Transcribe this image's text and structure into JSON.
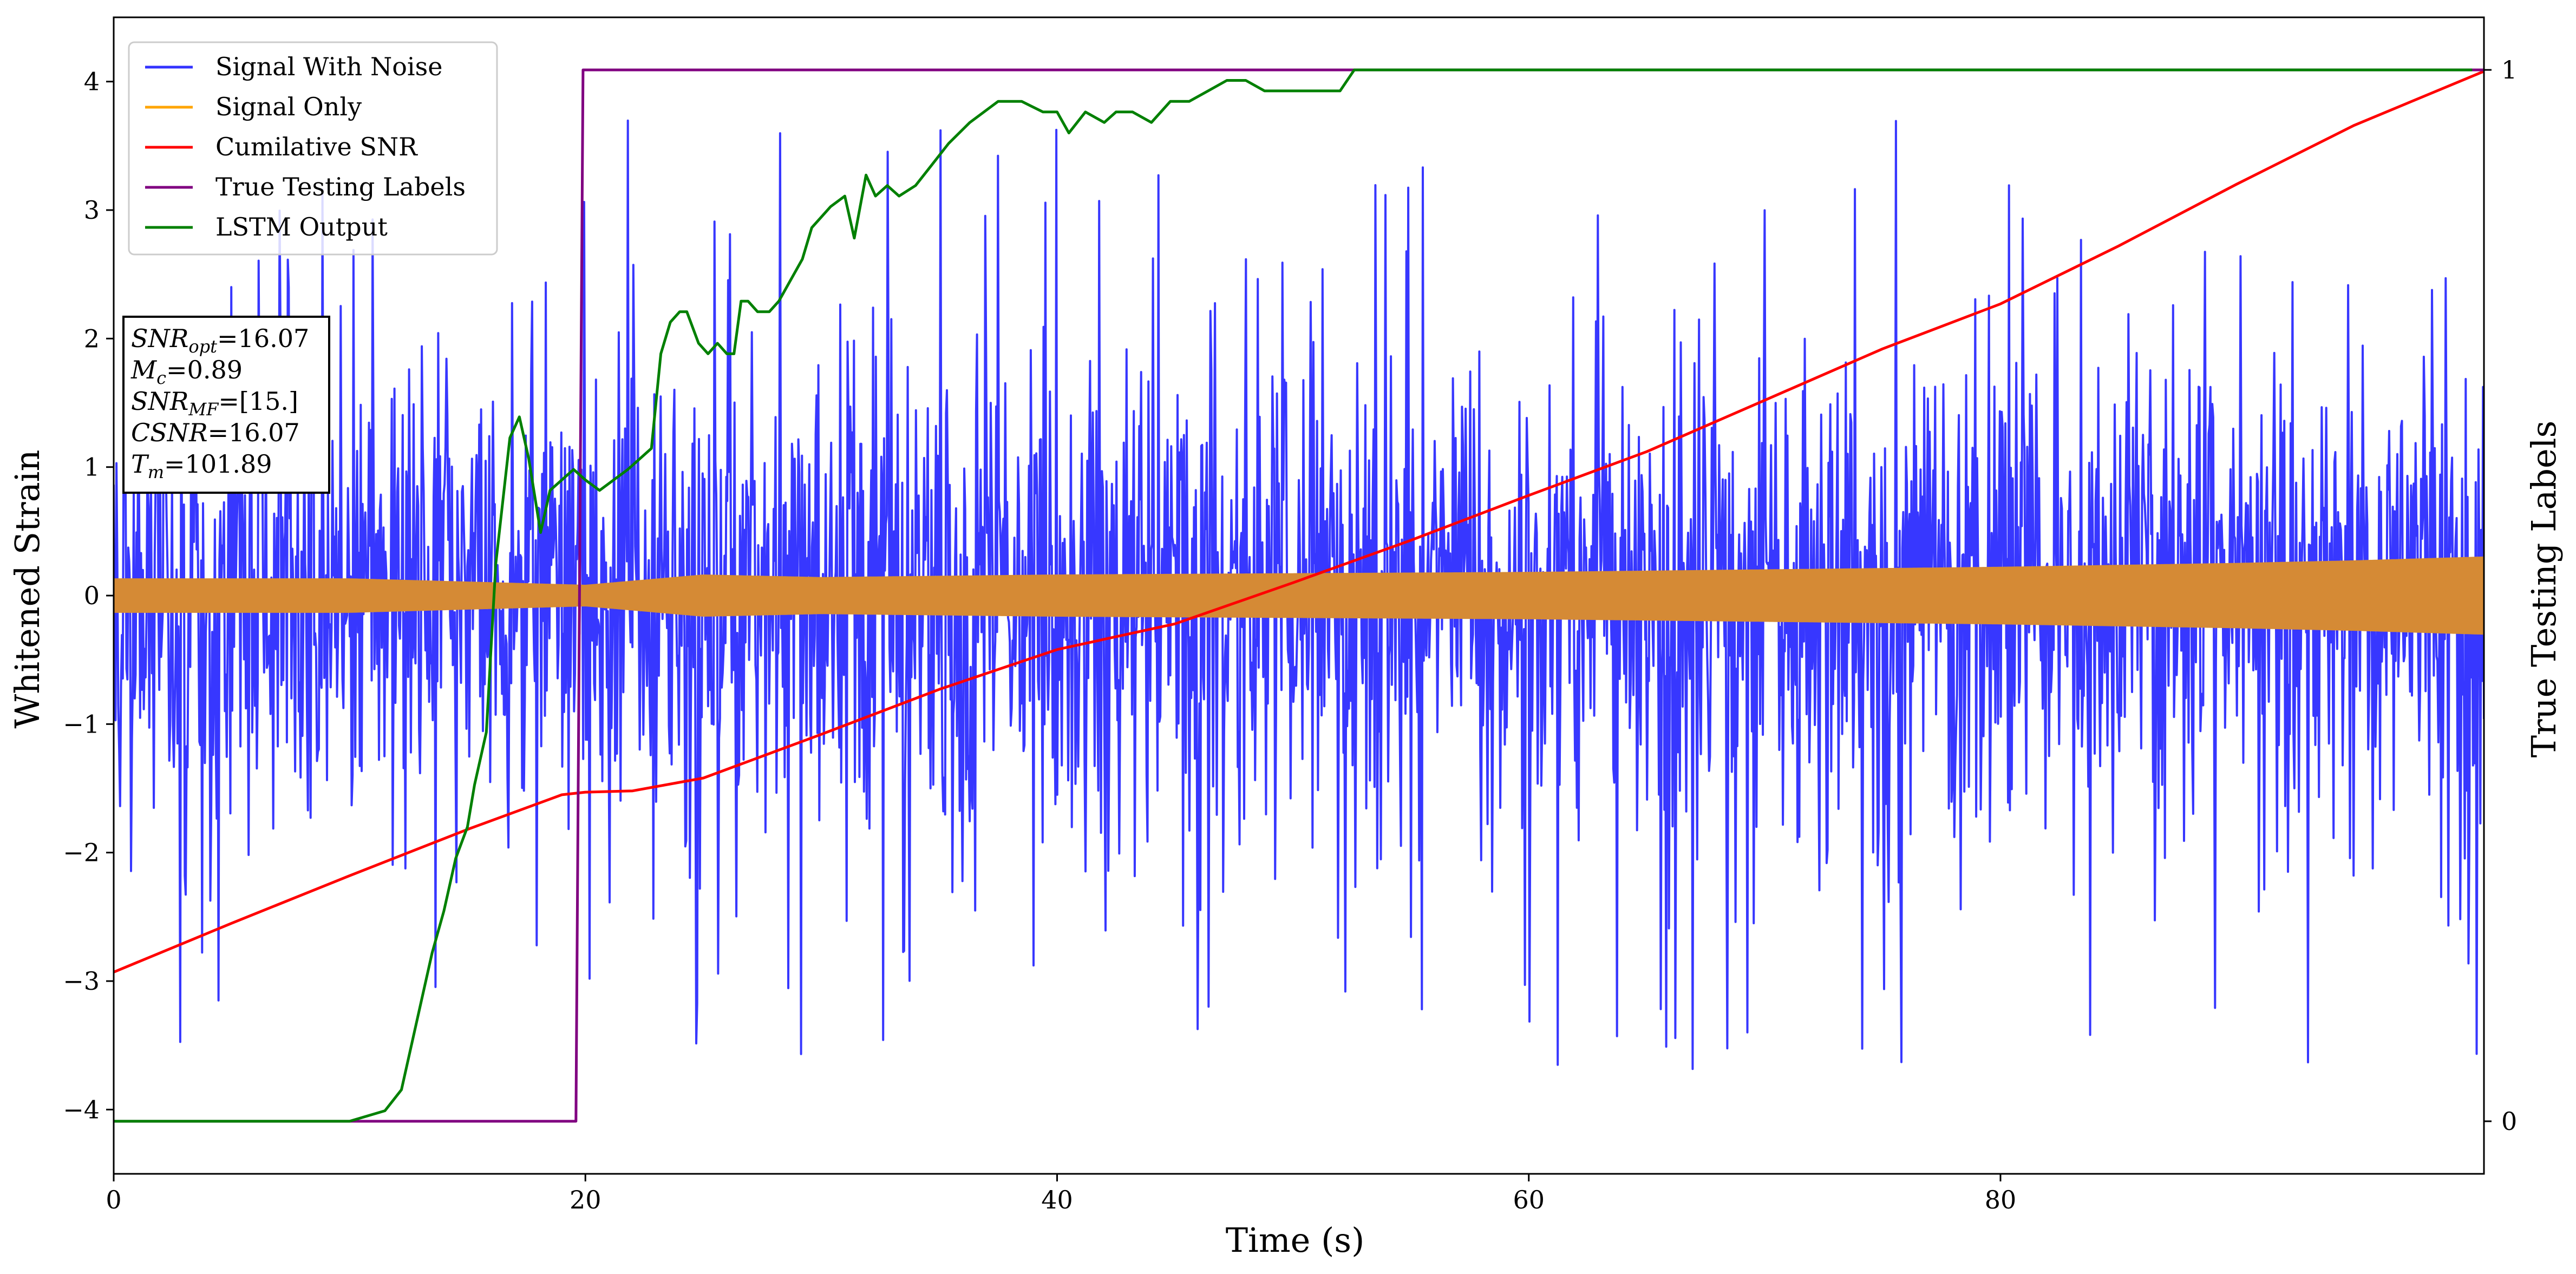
{
  "chart_data": {
    "type": "line",
    "xlabel": "Time (s)",
    "ylabel_left": "Whitened Strain",
    "ylabel_right": "True Testing Labels",
    "xlim": [
      0,
      100.5
    ],
    "ylim_left": [
      -4.5,
      4.5
    ],
    "ylim_right": [
      -0.05,
      1.05
    ],
    "x_ticks": [
      0,
      20,
      40,
      60,
      80
    ],
    "y_ticks_left": [
      -4,
      -3,
      -2,
      -1,
      0,
      1,
      2,
      3,
      4
    ],
    "y_ticks_right": [
      0,
      1
    ],
    "grid": false,
    "legend_position": "upper-left",
    "series": [
      {
        "name": "Signal With Noise",
        "color": "#3333ff",
        "axis": "left",
        "kind": "noise",
        "noise_band": {
          "x": [
            0,
            100.5
          ],
          "core_amplitude": 1.5,
          "peak_max": 3.8,
          "peak_min": -4.0
        }
      },
      {
        "name": "Signal Only",
        "color": "#ffa500",
        "axis": "left",
        "kind": "band",
        "envelope": {
          "x": [
            0,
            10,
            20,
            25,
            30,
            40,
            50,
            60,
            70,
            80,
            90,
            95,
            100.5
          ],
          "amplitude": [
            0.13,
            0.13,
            0.08,
            0.16,
            0.14,
            0.16,
            0.17,
            0.18,
            0.2,
            0.22,
            0.25,
            0.27,
            0.3
          ]
        }
      },
      {
        "name": "Cumilative SNR",
        "color": "#ff0000",
        "axis": "left",
        "kind": "line",
        "x": [
          0,
          5,
          10,
          15,
          19,
          20,
          22,
          25,
          30,
          35,
          40,
          45,
          50,
          55,
          60,
          65,
          70,
          75,
          80,
          85,
          90,
          95,
          100.5
        ],
        "y": [
          -2.93,
          -2.55,
          -2.18,
          -1.82,
          -1.55,
          -1.53,
          -1.52,
          -1.42,
          -1.08,
          -0.73,
          -0.42,
          -0.22,
          0.1,
          0.43,
          0.78,
          1.12,
          1.52,
          1.92,
          2.27,
          2.72,
          3.2,
          3.66,
          4.08
        ]
      },
      {
        "name": "True Testing Labels",
        "color": "#800080",
        "axis": "right",
        "kind": "line",
        "x": [
          0,
          19.6,
          19.9,
          100.5
        ],
        "y": [
          0,
          0,
          1,
          1
        ]
      },
      {
        "name": "LSTM Output",
        "color": "#008000",
        "axis": "right",
        "kind": "line",
        "x": [
          0,
          10,
          11.5,
          12.2,
          12.6,
          13,
          13.5,
          14,
          14.5,
          15,
          15.3,
          15.8,
          16.2,
          16.8,
          17.2,
          17.6,
          18.1,
          18.5,
          19,
          19.5,
          20,
          20.6,
          21.2,
          21.8,
          22.3,
          22.8,
          23.2,
          23.6,
          24,
          24.3,
          24.8,
          25.2,
          25.6,
          26,
          26.3,
          26.6,
          26.9,
          27.3,
          27.8,
          28.2,
          28.7,
          29.2,
          29.6,
          30,
          30.4,
          31,
          31.4,
          31.9,
          32.3,
          32.8,
          33.3,
          34,
          34.7,
          35.4,
          36.3,
          37.5,
          38.5,
          39.4,
          40,
          40.5,
          41.2,
          42,
          42.5,
          43.2,
          44,
          44.8,
          45.6,
          46.4,
          47.2,
          48,
          48.8,
          49.6,
          50.4,
          51.2,
          52,
          52.6,
          54,
          56,
          58,
          60,
          62,
          64,
          66,
          70,
          80,
          90,
          100
        ],
        "y": [
          0,
          0,
          0.01,
          0.03,
          0.07,
          0.11,
          0.16,
          0.2,
          0.25,
          0.28,
          0.32,
          0.37,
          0.53,
          0.65,
          0.67,
          0.63,
          0.56,
          0.6,
          0.61,
          0.62,
          0.61,
          0.6,
          0.61,
          0.62,
          0.63,
          0.64,
          0.73,
          0.76,
          0.77,
          0.77,
          0.74,
          0.73,
          0.74,
          0.73,
          0.73,
          0.78,
          0.78,
          0.77,
          0.77,
          0.78,
          0.8,
          0.82,
          0.85,
          0.86,
          0.87,
          0.88,
          0.84,
          0.9,
          0.88,
          0.89,
          0.88,
          0.89,
          0.91,
          0.93,
          0.95,
          0.97,
          0.97,
          0.96,
          0.96,
          0.94,
          0.96,
          0.95,
          0.96,
          0.96,
          0.95,
          0.97,
          0.97,
          0.98,
          0.99,
          0.99,
          0.98,
          0.98,
          0.98,
          0.98,
          0.98,
          1.0,
          1.0,
          1.0,
          1.0,
          1.0,
          1.0,
          1.0,
          1.0,
          1.0,
          1.0,
          1.0,
          1.0
        ]
      }
    ],
    "annotations": {
      "lines": [
        {
          "prefix": "SNR",
          "sub": "opt",
          "value": "=16.07"
        },
        {
          "prefix": "M",
          "sub": "c",
          "value": "=0.89"
        },
        {
          "prefix": "SNR",
          "sub": "MF",
          "value": "=[15.]"
        },
        {
          "prefix": "CSNR",
          "sub": "",
          "value": "=16.07"
        },
        {
          "prefix": "T",
          "sub": "m",
          "value": "=101.89"
        }
      ]
    }
  }
}
